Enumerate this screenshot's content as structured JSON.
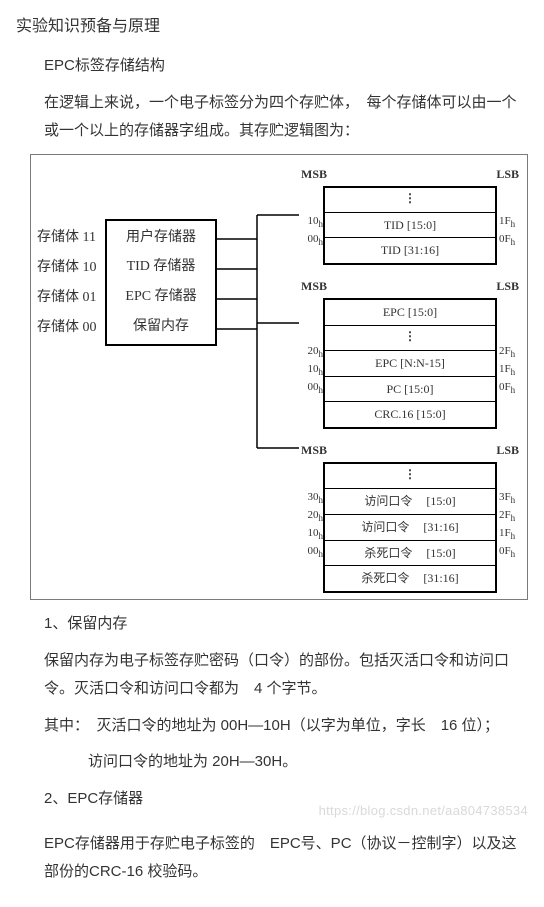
{
  "title": "实验知识预备与原理",
  "section1_title": "EPC标签存储结构",
  "intro_p1": "在逻辑上来说，一个电子标签分为四个存贮体，　每个存储体可以由一个或一个以上的存储器字组成。其存贮逻辑图为：",
  "diagram": {
    "msb": "MSB",
    "lsb": "LSB",
    "left_banks": [
      {
        "label": "存储体 11",
        "name": "用户存储器"
      },
      {
        "label": "存储体 10",
        "name": "TID 存储器"
      },
      {
        "label": "存储体 01",
        "name": "EPC 存储器"
      },
      {
        "label": "存储体 00",
        "name": "保留内存"
      }
    ],
    "block_tid": {
      "rows": [
        {
          "l": "",
          "cell": [
            "⋮"
          ],
          "r": "",
          "dots": true
        },
        {
          "l": "10",
          "lh": "h",
          "cell": [
            "TID [15:0]"
          ],
          "r": "1F",
          "rh": "h"
        },
        {
          "l": "00",
          "lh": "h",
          "cell": [
            "TID [31:16]"
          ],
          "r": "0F",
          "rh": "h"
        }
      ]
    },
    "block_epc": {
      "rows": [
        {
          "l": "",
          "cell": [
            "EPC [15:0]"
          ],
          "r": ""
        },
        {
          "l": "",
          "cell": [
            "⋮"
          ],
          "r": "",
          "dots": true
        },
        {
          "l": "20",
          "lh": "h",
          "cell": [
            "EPC [N:N-15]"
          ],
          "r": "2F",
          "rh": "h"
        },
        {
          "l": "10",
          "lh": "h",
          "cell": [
            "PC [15:0]"
          ],
          "r": "1F",
          "rh": "h"
        },
        {
          "l": "00",
          "lh": "h",
          "cell": [
            "CRC.16 [15:0]"
          ],
          "r": "0F",
          "rh": "h"
        }
      ]
    },
    "block_res": {
      "rows": [
        {
          "l": "",
          "cell": [
            "⋮"
          ],
          "r": "",
          "dots": true
        },
        {
          "l": "30",
          "lh": "h",
          "cell": [
            "访问口令",
            "[15:0]"
          ],
          "r": "3F",
          "rh": "h"
        },
        {
          "l": "20",
          "lh": "h",
          "cell": [
            "访问口令",
            "[31:16]"
          ],
          "r": "2F",
          "rh": "h"
        },
        {
          "l": "10",
          "lh": "h",
          "cell": [
            "杀死口令",
            "[15:0]"
          ],
          "r": "1F",
          "rh": "h"
        },
        {
          "l": "00",
          "lh": "h",
          "cell": [
            "杀死口令",
            "[31:16]"
          ],
          "r": "0F",
          "rh": "h"
        }
      ]
    }
  },
  "section_reserve_title": "1、保留内存",
  "section_reserve_p1": "保留内存为电子标签存贮密码（口令）的部份。包括灭活口令和访问口令。灭活口令和访问口令都为　4 个字节。",
  "section_reserve_p2": "其中：　灭活口令的地址为  00H—10H（以字为单位，字长　16 位）；",
  "section_reserve_p3": "访问口令的地址为  20H—30H。",
  "section_epc_title": "2、EPC存储器",
  "section_epc_p1": "EPC存储器用于存贮电子标签的　EPC号、PC（协议－控制字）以及这部份的CRC-16 校验码。",
  "watermark": "https://blog.csdn.net/aa804738534"
}
